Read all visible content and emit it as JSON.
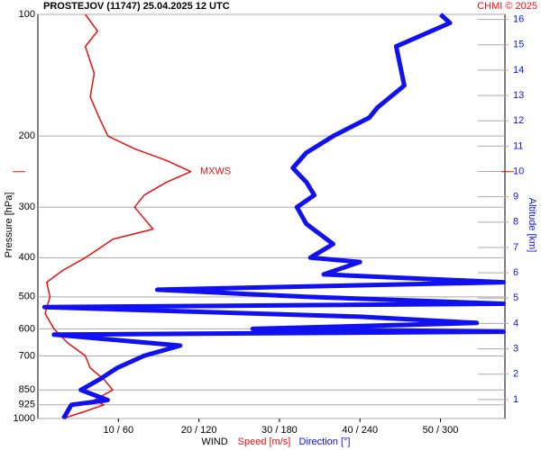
{
  "chart_data": {
    "type": "profile",
    "title": "PROSTEJOV (11747)    25.04.2025 12 UTC",
    "credit": "CHMI © 2025",
    "ylabel": "Pressure [hPa]",
    "y2label": "Altitude [km]",
    "xlabel": "WIND",
    "log_y": true,
    "ylim": [
      1000,
      100
    ],
    "yticks": [
      100,
      200,
      300,
      400,
      500,
      600,
      700,
      850,
      925,
      1000
    ],
    "y2lim": [
      0.25,
      16.2
    ],
    "y2ticks": [
      1,
      2,
      3,
      4,
      5,
      6,
      7,
      8,
      9,
      10,
      11,
      12,
      13,
      14,
      15,
      16
    ],
    "xlim": [
      0,
      58
    ],
    "x2lim": [
      0,
      348
    ],
    "xticks": [
      {
        "value": 10,
        "label": "10 / 60"
      },
      {
        "value": 20,
        "label": "20 / 120"
      },
      {
        "value": 30,
        "label": "30 / 180"
      },
      {
        "value": 40,
        "label": "40 / 240"
      },
      {
        "value": 50,
        "label": "50 / 300"
      }
    ],
    "mxws": {
      "label": "MXWS",
      "pressure": 245
    },
    "series": [
      {
        "name": "Speed [m/s]",
        "color": "#e81010",
        "axis": "x",
        "pressure": [
          100,
          110,
          120,
          140,
          160,
          180,
          200,
          215,
          230,
          245,
          260,
          280,
          300,
          320,
          340,
          360,
          380,
          400,
          430,
          460,
          500,
          550,
          600,
          650,
          700,
          750,
          800,
          850,
          900,
          925,
          960,
          1000
        ],
        "values": [
          5.9,
          7.4,
          5.9,
          7.0,
          6.5,
          7.6,
          8.7,
          12,
          16,
          19,
          16,
          13.2,
          12,
          13.2,
          14.3,
          9.3,
          7.6,
          5.9,
          3.1,
          1.1,
          1.5,
          0.9,
          2,
          3.7,
          5.9,
          6.5,
          8.2,
          9.3,
          7,
          8.2,
          5.9,
          3.1
        ]
      },
      {
        "name": "Direction [°]",
        "color": "#1010f0",
        "axis": "x2",
        "pressure": [
          100,
          105,
          120,
          150,
          170,
          180,
          200,
          220,
          240,
          260,
          280,
          300,
          330,
          370,
          400,
          410,
          440,
          460,
          480,
          500,
          520,
          530,
          560,
          580,
          600,
          610,
          620,
          660,
          700,
          750,
          800,
          850,
          900,
          925,
          1000
        ],
        "values": [
          300,
          307,
          267,
          273,
          253,
          247,
          220,
          200,
          190,
          200,
          206,
          193,
          200,
          220,
          203,
          240,
          213,
          347,
          89,
          200,
          347,
          5,
          240,
          327,
          160,
          347,
          12,
          106,
          79,
          59,
          46,
          32,
          52,
          25,
          19
        ]
      }
    ]
  }
}
